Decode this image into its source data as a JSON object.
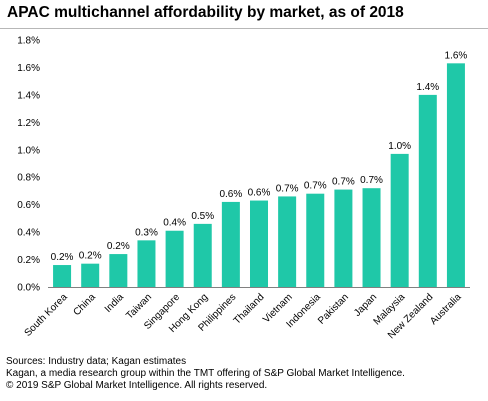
{
  "chart_data": {
    "type": "bar",
    "title": "APAC multichannel affordability by market, as of 2018",
    "xlabel": "",
    "ylabel": "",
    "categories": [
      "South Korea",
      "China",
      "India",
      "Taiwan",
      "Singapore",
      "Hong Kong",
      "Philippines",
      "Thailand",
      "Vietnam",
      "Indonesia",
      "Pakistan",
      "Japan",
      "Malaysia",
      "New Zealand",
      "Australia"
    ],
    "values": [
      0.16,
      0.17,
      0.24,
      0.34,
      0.41,
      0.46,
      0.62,
      0.63,
      0.66,
      0.68,
      0.71,
      0.72,
      0.97,
      1.4,
      1.63
    ],
    "data_labels": [
      "0.2%",
      "0.2%",
      "0.2%",
      "0.3%",
      "0.4%",
      "0.5%",
      "0.6%",
      "0.6%",
      "0.7%",
      "0.7%",
      "0.7%",
      "0.7%",
      "1.0%",
      "1.4%",
      "1.6%"
    ],
    "yticks": [
      0,
      0.2,
      0.4,
      0.6,
      0.8,
      1.0,
      1.2,
      1.4,
      1.6,
      1.8
    ],
    "ytick_labels": [
      "0.0%",
      "0.2%",
      "0.4%",
      "0.6%",
      "0.8%",
      "1.0%",
      "1.2%",
      "1.4%",
      "1.6%",
      "1.8%"
    ],
    "ylim": [
      0,
      1.8
    ],
    "grid": false,
    "legend": "none",
    "bar_color": "#1fc8a8"
  },
  "footer": {
    "sources": "Sources: Industry data; Kagan estimates",
    "note": "Kagan, a media research group within the TMT offering of S&P Global Market Intelligence.",
    "copyright": "© 2019 S&P Global Market Intelligence. All rights reserved."
  }
}
